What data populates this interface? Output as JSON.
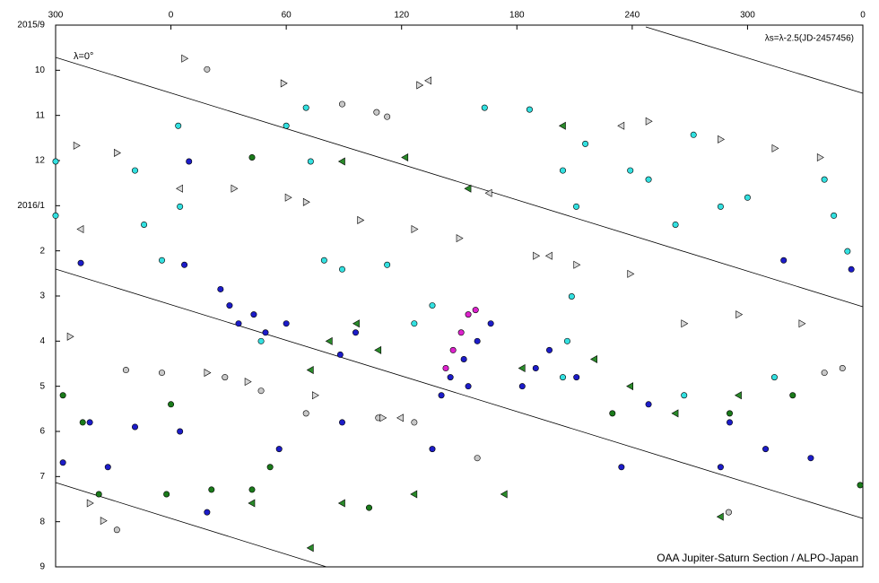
{
  "chart_data": {
    "type": "scatter",
    "annotations": [
      "λ=0°",
      "λs=λ-2.5(JD-2457456)",
      "OAA Jupiter-Saturn Section / ALPO-Japan"
    ],
    "xlim": [
      -60,
      360
    ],
    "xticks": [
      {
        "value": -60,
        "label": "300"
      },
      0,
      60,
      120,
      180,
      240,
      300,
      {
        "value": 360,
        "label": "0"
      }
    ],
    "ylim": [
      12,
      0
    ],
    "yticks": [
      {
        "value": 0,
        "label": "2015/9"
      },
      {
        "value": 1,
        "label": "10"
      },
      {
        "value": 2,
        "label": "11"
      },
      {
        "value": 3,
        "label": "12"
      },
      {
        "value": 4,
        "label": "2016/1"
      },
      {
        "value": 5,
        "label": "2"
      },
      {
        "value": 6,
        "label": "3"
      },
      {
        "value": 7,
        "label": "4"
      },
      {
        "value": 8,
        "label": "5"
      },
      {
        "value": 9,
        "label": "6"
      },
      {
        "value": 10,
        "label": "7"
      },
      {
        "value": 11,
        "label": "8"
      },
      {
        "value": 12,
        "label": "9"
      }
    ],
    "series": [
      {
        "color": "#1c1cc8",
        "marker": "circle",
        "x": [
          25.8,
          30.5,
          35.2,
          43.1,
          49.2,
          60,
          -46.9,
          7.0,
          88.1,
          96.1,
          140.7,
          145.4,
          152.4,
          159.4,
          166.4,
          182.8,
          189.8,
          196.9,
          154.7,
          211,
          248.5,
          290.7,
          286,
          309.4,
          332.9,
          -56.2,
          -32.8,
          4.7,
          136,
          9.4,
          354,
          318.8,
          -42.2,
          -18.7,
          56.3,
          18.8,
          89.1,
          234.4
        ],
        "values": [
          5.85,
          6.21,
          6.61,
          6.41,
          6.81,
          6.61,
          5.27,
          5.31,
          7.3,
          6.81,
          8.2,
          7.8,
          7.4,
          7.0,
          6.61,
          8.0,
          7.6,
          7.2,
          8.0,
          7.8,
          8.4,
          8.8,
          9.79,
          9.39,
          9.59,
          9.69,
          9.79,
          9.0,
          9.39,
          3.02,
          5.41,
          5.21,
          8.8,
          8.9,
          9.39,
          10.79,
          8.8,
          9.79
        ]
      },
      {
        "color": "#33e0e0",
        "marker": "circle",
        "x": [
          -60,
          -60,
          -18.7,
          -14,
          -4.7,
          3.8,
          4.7,
          60,
          72.7,
          79.7,
          89.1,
          112.5,
          163.2,
          186.6,
          203.9,
          210.9,
          208.5,
          206.2,
          203.9,
          215.6,
          239,
          248.5,
          262.5,
          271.9,
          286,
          300,
          340,
          344.9,
          352,
          126.6,
          136,
          46.9,
          267,
          314,
          70.3
        ],
        "values": [
          3.02,
          4.22,
          3.22,
          4.42,
          5.21,
          2.23,
          4.02,
          2.23,
          3.02,
          5.21,
          5.41,
          5.31,
          1.83,
          1.87,
          3.22,
          4.02,
          6.01,
          7.0,
          7.8,
          2.63,
          3.22,
          3.42,
          4.42,
          2.43,
          4.02,
          3.82,
          3.42,
          4.22,
          5.01,
          6.61,
          6.21,
          7.0,
          8.2,
          7.8,
          1.83
        ]
      },
      {
        "color": "#dd22cc",
        "marker": "circle",
        "x": [
          143,
          146.8,
          151,
          154.7,
          158.5
        ],
        "values": [
          7.6,
          7.2,
          6.81,
          6.41,
          6.31
        ]
      },
      {
        "color": "#1a7a1a",
        "marker": "circle",
        "x": [
          42.2,
          -56.2,
          -45.9,
          0,
          42.2,
          51.6,
          -2.3,
          103.1,
          290.7,
          323.5,
          358.6,
          229.7,
          -37.5,
          21.1
        ],
        "values": [
          2.93,
          8.2,
          8.8,
          8.4,
          10.29,
          9.79,
          10.39,
          10.69,
          8.6,
          8.2,
          10.19,
          8.6,
          10.39,
          10.29
        ]
      },
      {
        "color": "#c8c8c8",
        "marker": "circle",
        "x": [
          18.8,
          89.1,
          107,
          112.5,
          -23.4,
          -4.7,
          46.9,
          28.1,
          70.3,
          107.9,
          126.6,
          159.4,
          290.2,
          340,
          349.4,
          -28.1
        ],
        "values": [
          0.98,
          1.75,
          1.93,
          2.03,
          7.64,
          7.7,
          8.1,
          7.8,
          8.6,
          8.7,
          8.8,
          9.59,
          10.79,
          7.7,
          7.6,
          11.18
        ]
      },
      {
        "color": "#d8d8d8",
        "marker": "triangle-right",
        "x": [
          7,
          58.6,
          129.3,
          -49.2,
          -28.1,
          32.8,
          60.9,
          98.5,
          126.6,
          150,
          189.9,
          211,
          239,
          267,
          295.4,
          328.2,
          -52.5,
          18.8,
          39.9,
          75,
          110.2,
          -42.2,
          -35.2,
          248.5,
          286,
          314.2,
          337.7,
          70.3
        ],
        "values": [
          0.74,
          1.29,
          1.33,
          2.67,
          2.83,
          3.62,
          3.82,
          4.32,
          4.52,
          4.72,
          5.11,
          5.31,
          5.51,
          6.61,
          6.41,
          6.61,
          6.9,
          7.7,
          7.9,
          8.2,
          8.7,
          10.59,
          10.98,
          2.13,
          2.53,
          2.73,
          2.93,
          3.92
        ]
      },
      {
        "color": "#d8d8d8",
        "marker": "triangle-left",
        "x": [
          134,
          165.5,
          196.9,
          -46.9,
          4.7,
          234.4,
          119.5
        ],
        "values": [
          1.23,
          3.72,
          5.11,
          4.52,
          3.62,
          2.23,
          8.7
        ]
      },
      {
        "color": "#2a8a2a",
        "marker": "triangle-left",
        "x": [
          89.1,
          121.9,
          154.7,
          203.9,
          82.5,
          96.6,
          72.7,
          107.9,
          182.8,
          220.3,
          239,
          262.5,
          295.4,
          42.2,
          89.1,
          126.6,
          173.5,
          72.7,
          286
        ],
        "values": [
          3.02,
          2.93,
          3.62,
          2.23,
          7.0,
          6.61,
          7.64,
          7.2,
          7.6,
          7.4,
          8.0,
          8.6,
          8.2,
          10.59,
          10.59,
          10.39,
          10.39,
          11.58,
          10.89
        ]
      }
    ]
  }
}
